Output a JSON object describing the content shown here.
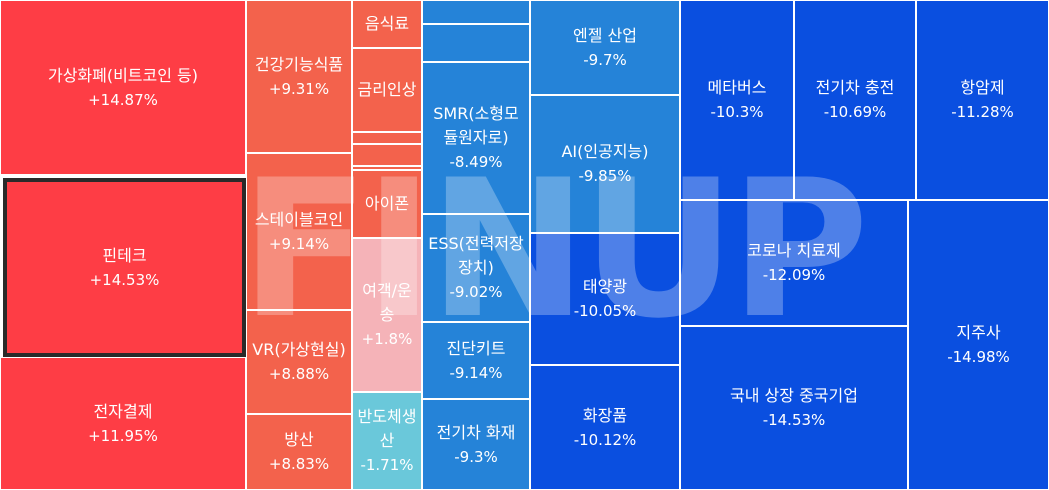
{
  "chart_data": {
    "type": "treemap",
    "watermark": "FINUP",
    "colors": {
      "strong_up": "#fe3d45",
      "up": "#f3624c",
      "light_up": "#f5b3b8",
      "light_down": "#6ac8da",
      "down": "#2583d8",
      "strong_down": "#0a4fe0"
    },
    "items": [
      {
        "id": "crypto",
        "label": "가상화폐(비트코인 등)",
        "value": "+14.87%"
      },
      {
        "id": "fintech",
        "label": "핀테크",
        "value": "+14.53%",
        "selected": true
      },
      {
        "id": "payment",
        "label": "전자결제",
        "value": "+11.95%"
      },
      {
        "id": "healthfood",
        "label": "건강기능식품",
        "value": "+9.31%"
      },
      {
        "id": "stablecoin",
        "label": "스테이블코인",
        "value": "+9.14%"
      },
      {
        "id": "vr",
        "label": "VR(가상현실)",
        "value": "+8.88%"
      },
      {
        "id": "defense",
        "label": "방산",
        "value": "+8.83%"
      },
      {
        "id": "beverage",
        "label": "음식료",
        "value": ""
      },
      {
        "id": "rateup",
        "label": "금리인상",
        "value": ""
      },
      {
        "id": "small1",
        "label": "",
        "value": ""
      },
      {
        "id": "small2",
        "label": "",
        "value": ""
      },
      {
        "id": "small3",
        "label": "",
        "value": ""
      },
      {
        "id": "iphone",
        "label": "아이폰",
        "value": ""
      },
      {
        "id": "travel",
        "label": "여객/운송",
        "value": "+1.8%"
      },
      {
        "id": "semiprod",
        "label": "반도체생산",
        "value": "-1.71%"
      },
      {
        "id": "blank1",
        "label": "",
        "value": ""
      },
      {
        "id": "blank2",
        "label": "",
        "value": ""
      },
      {
        "id": "smr",
        "label": "SMR(소형모듈원자로)",
        "value": "-8.49%"
      },
      {
        "id": "ess",
        "label": "ESS(전력저장장치)",
        "value": "-9.02%"
      },
      {
        "id": "diagkit",
        "label": "진단키트",
        "value": "-9.14%"
      },
      {
        "id": "evfire",
        "label": "전기차 화재",
        "value": "-9.3%"
      },
      {
        "id": "angel",
        "label": "엔젤 산업",
        "value": "-9.7%"
      },
      {
        "id": "ai",
        "label": "AI(인공지능)",
        "value": "-9.85%"
      },
      {
        "id": "solar",
        "label": "태양광",
        "value": "-10.05%"
      },
      {
        "id": "cosmetics",
        "label": "화장품",
        "value": "-10.12%"
      },
      {
        "id": "metaverse",
        "label": "메타버스",
        "value": "-10.3%"
      },
      {
        "id": "evcharge",
        "label": "전기차 충전",
        "value": "-10.69%"
      },
      {
        "id": "anticancer",
        "label": "항암제",
        "value": "-11.28%"
      },
      {
        "id": "corona",
        "label": "코로나 치료제",
        "value": "-12.09%"
      },
      {
        "id": "china",
        "label": "국내 상장 중국기업",
        "value": "-14.53%"
      },
      {
        "id": "holding",
        "label": "지주사",
        "value": "-14.98%"
      }
    ]
  }
}
